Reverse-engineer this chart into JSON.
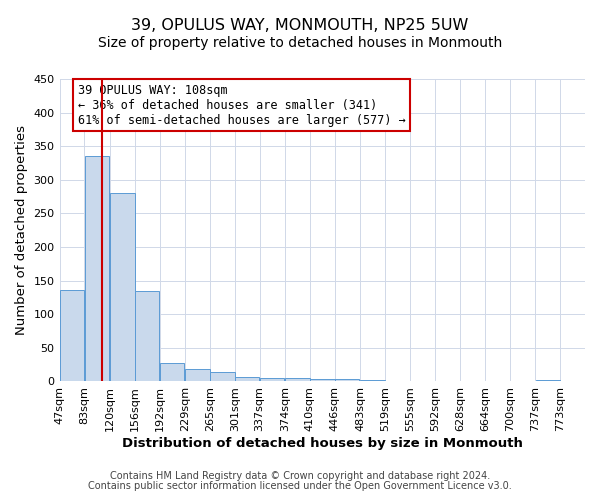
{
  "title": "39, OPULUS WAY, MONMOUTH, NP25 5UW",
  "subtitle": "Size of property relative to detached houses in Monmouth",
  "xlabel": "Distribution of detached houses by size in Monmouth",
  "ylabel": "Number of detached properties",
  "bar_left_edges": [
    47,
    83,
    120,
    156,
    192,
    229,
    265,
    301,
    337,
    374,
    410,
    446,
    483,
    519,
    555,
    592,
    628,
    664,
    700,
    737
  ],
  "bar_heights": [
    136,
    335,
    280,
    135,
    27,
    19,
    14,
    7,
    5,
    5,
    4,
    3,
    2,
    0,
    0,
    1,
    0,
    0,
    0,
    2
  ],
  "bin_width": 36,
  "tick_labels": [
    "47sqm",
    "83sqm",
    "120sqm",
    "156sqm",
    "192sqm",
    "229sqm",
    "265sqm",
    "301sqm",
    "337sqm",
    "374sqm",
    "410sqm",
    "446sqm",
    "483sqm",
    "519sqm",
    "555sqm",
    "592sqm",
    "628sqm",
    "664sqm",
    "700sqm",
    "737sqm",
    "773sqm"
  ],
  "bar_color": "#c9d9ec",
  "bar_edge_color": "#5b9bd5",
  "property_line_x": 108,
  "property_line_color": "#cc0000",
  "annotation_line1": "39 OPULUS WAY: 108sqm",
  "annotation_line2": "← 36% of detached houses are smaller (341)",
  "annotation_line3": "61% of semi-detached houses are larger (577) →",
  "ylim": [
    0,
    450
  ],
  "yticks": [
    0,
    50,
    100,
    150,
    200,
    250,
    300,
    350,
    400,
    450
  ],
  "footer1": "Contains HM Land Registry data © Crown copyright and database right 2024.",
  "footer2": "Contains public sector information licensed under the Open Government Licence v3.0.",
  "background_color": "#ffffff",
  "grid_color": "#d0d8e8",
  "title_fontsize": 11.5,
  "subtitle_fontsize": 10,
  "axis_label_fontsize": 9.5,
  "tick_fontsize": 8,
  "annotation_fontsize": 8.5,
  "footer_fontsize": 7
}
